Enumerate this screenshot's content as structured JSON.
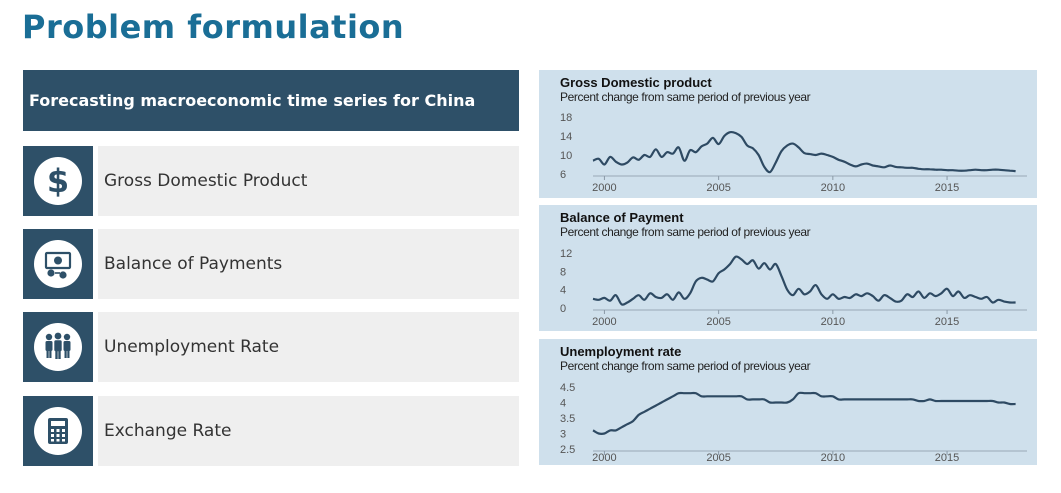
{
  "page_title": "Problem formulation",
  "panel": {
    "header": "Forecasting macroeconomic time series for China",
    "items": [
      {
        "label": "Gross Domestic Product",
        "icon": "dollar-icon"
      },
      {
        "label": "Balance of Payments",
        "icon": "money-exchange-icon"
      },
      {
        "label": "Unemployment Rate",
        "icon": "people-icon"
      },
      {
        "label": "Exchange Rate",
        "icon": "calculator-icon"
      }
    ]
  },
  "colors": {
    "accent": "#1a6e96",
    "panel": "#2e5068",
    "chart_bg": "#cfe0ec",
    "line": "#2e4a63"
  },
  "chart_data": [
    {
      "type": "line",
      "title": "Gross Domestic product",
      "subtitle": "Percent change from same period of previous year",
      "xlim": [
        1999.5,
        2018.5
      ],
      "ylim": [
        6,
        18
      ],
      "yticks": [
        "18",
        "14",
        "10",
        "6"
      ],
      "ytick_values": [
        18,
        14,
        10,
        6
      ],
      "xticks": [
        "2000",
        "2005",
        "2010",
        "2015"
      ],
      "xtick_values": [
        2000,
        2005,
        2010,
        2015
      ],
      "x": [
        1999.5,
        1999.75,
        2000,
        2000.25,
        2000.5,
        2000.75,
        2001,
        2001.25,
        2001.5,
        2001.75,
        2002,
        2002.25,
        2002.5,
        2002.75,
        2003,
        2003.25,
        2003.5,
        2003.75,
        2004,
        2004.25,
        2004.5,
        2004.75,
        2005,
        2005.25,
        2005.5,
        2005.75,
        2006,
        2006.25,
        2006.5,
        2006.75,
        2007,
        2007.25,
        2007.5,
        2007.75,
        2008,
        2008.25,
        2008.5,
        2008.75,
        2009,
        2009.25,
        2009.5,
        2009.75,
        2010,
        2010.25,
        2010.5,
        2010.75,
        2011,
        2011.25,
        2011.5,
        2011.75,
        2012,
        2012.25,
        2012.5,
        2012.75,
        2013,
        2013.25,
        2013.5,
        2013.75,
        2014,
        2014.25,
        2014.5,
        2014.75,
        2015,
        2015.25,
        2015.5,
        2015.75,
        2016,
        2016.25,
        2016.5,
        2016.75,
        2017,
        2017.25,
        2017.5,
        2017.75,
        2018
      ],
      "y": [
        8.8,
        9.2,
        8.0,
        9.6,
        8.6,
        8.0,
        8.4,
        9.5,
        9.0,
        10.0,
        9.6,
        11.2,
        9.6,
        10.6,
        10.3,
        11.6,
        8.8,
        11.0,
        10.6,
        11.8,
        12.4,
        13.6,
        12.3,
        14.0,
        14.8,
        14.6,
        13.8,
        12.0,
        11.4,
        10.0,
        7.5,
        6.4,
        8.4,
        10.8,
        12.0,
        12.4,
        11.6,
        10.4,
        10.2,
        10.0,
        10.3,
        10.0,
        9.6,
        9.0,
        8.6,
        8.0,
        7.6,
        8.0,
        8.2,
        7.8,
        7.6,
        7.4,
        7.8,
        7.5,
        7.4,
        7.3,
        7.3,
        7.1,
        7.0,
        7.0,
        6.9,
        6.9,
        6.8,
        6.8,
        6.7,
        6.7,
        6.8,
        6.9,
        6.8,
        6.8,
        6.9,
        6.9,
        6.8,
        6.7,
        6.6
      ]
    },
    {
      "type": "line",
      "title": "Balance of Payment",
      "subtitle": "Percent change from same period of previous year",
      "xlim": [
        1999.5,
        2018.5
      ],
      "ylim": [
        0,
        12
      ],
      "yticks": [
        "12",
        "8",
        "4",
        "0"
      ],
      "ytick_values": [
        12,
        8,
        4,
        0
      ],
      "xticks": [
        "2000",
        "2005",
        "2010",
        "2015"
      ],
      "xtick_values": [
        2000,
        2005,
        2010,
        2015
      ],
      "x": [
        1999.5,
        1999.75,
        2000,
        2000.25,
        2000.5,
        2000.75,
        2001,
        2001.25,
        2001.5,
        2001.75,
        2002,
        2002.25,
        2002.5,
        2002.75,
        2003,
        2003.25,
        2003.5,
        2003.75,
        2004,
        2004.25,
        2004.5,
        2004.75,
        2005,
        2005.25,
        2005.5,
        2005.75,
        2006,
        2006.25,
        2006.5,
        2006.75,
        2007,
        2007.25,
        2007.5,
        2007.75,
        2008,
        2008.25,
        2008.5,
        2008.75,
        2009,
        2009.25,
        2009.5,
        2009.75,
        2010,
        2010.25,
        2010.5,
        2010.75,
        2011,
        2011.25,
        2011.5,
        2011.75,
        2012,
        2012.25,
        2012.5,
        2012.75,
        2013,
        2013.25,
        2013.5,
        2013.75,
        2014,
        2014.25,
        2014.5,
        2014.75,
        2015,
        2015.25,
        2015.5,
        2015.75,
        2016,
        2016.25,
        2016.5,
        2016.75,
        2017,
        2017.25,
        2017.5,
        2017.75,
        2018
      ],
      "y": [
        2.0,
        1.8,
        2.2,
        1.6,
        2.8,
        0.8,
        1.2,
        2.0,
        2.8,
        1.8,
        3.2,
        2.4,
        2.2,
        3.0,
        1.8,
        3.4,
        2.0,
        3.2,
        5.8,
        6.6,
        6.2,
        5.8,
        7.6,
        8.4,
        9.6,
        11.2,
        10.6,
        9.6,
        10.4,
        8.6,
        9.8,
        8.4,
        9.6,
        7.0,
        4.0,
        2.8,
        4.2,
        3.0,
        3.6,
        5.0,
        3.0,
        2.0,
        3.0,
        2.0,
        2.4,
        2.2,
        3.0,
        2.6,
        3.2,
        2.6,
        1.6,
        2.8,
        2.2,
        1.4,
        1.6,
        3.0,
        2.4,
        3.6,
        2.2,
        3.2,
        2.6,
        3.2,
        4.2,
        2.6,
        3.6,
        2.2,
        2.8,
        2.4,
        2.0,
        2.4,
        1.2,
        1.8,
        1.4,
        1.2,
        1.2
      ]
    },
    {
      "type": "line",
      "title": "Unemployment rate",
      "subtitle": "Percent change from same period of previous year",
      "xlim": [
        1999.5,
        2018.5
      ],
      "ylim": [
        2.5,
        4.5
      ],
      "yticks": [
        "4.5",
        "4",
        "3.5",
        "3",
        "2.5"
      ],
      "ytick_values": [
        4.5,
        4,
        3.5,
        3,
        2.5
      ],
      "xticks": [
        "2000",
        "2005",
        "2010",
        "2015"
      ],
      "xtick_values": [
        2000,
        2005,
        2010,
        2015
      ],
      "x": [
        1999.5,
        1999.75,
        2000,
        2000.25,
        2000.5,
        2000.75,
        2001,
        2001.25,
        2001.5,
        2001.75,
        2002,
        2002.25,
        2002.5,
        2002.75,
        2003,
        2003.25,
        2003.5,
        2003.75,
        2004,
        2004.25,
        2004.5,
        2004.75,
        2005,
        2005.25,
        2005.5,
        2005.75,
        2006,
        2006.25,
        2006.5,
        2006.75,
        2007,
        2007.25,
        2007.5,
        2007.75,
        2008,
        2008.25,
        2008.5,
        2008.75,
        2009,
        2009.25,
        2009.5,
        2009.75,
        2010,
        2010.25,
        2010.5,
        2010.75,
        2011,
        2011.25,
        2011.5,
        2011.75,
        2012,
        2012.25,
        2012.5,
        2012.75,
        2013,
        2013.25,
        2013.5,
        2013.75,
        2014,
        2014.25,
        2014.5,
        2014.75,
        2015,
        2015.25,
        2015.5,
        2015.75,
        2016,
        2016.25,
        2016.5,
        2016.75,
        2017,
        2017.25,
        2017.5,
        2017.75,
        2018
      ],
      "y": [
        3.1,
        3.0,
        3.0,
        3.1,
        3.1,
        3.2,
        3.3,
        3.4,
        3.6,
        3.7,
        3.8,
        3.9,
        4.0,
        4.1,
        4.2,
        4.3,
        4.3,
        4.3,
        4.3,
        4.2,
        4.2,
        4.2,
        4.2,
        4.2,
        4.2,
        4.2,
        4.2,
        4.1,
        4.1,
        4.1,
        4.1,
        4.0,
        4.0,
        4.0,
        4.0,
        4.1,
        4.3,
        4.3,
        4.3,
        4.3,
        4.2,
        4.2,
        4.2,
        4.1,
        4.1,
        4.1,
        4.1,
        4.1,
        4.1,
        4.1,
        4.1,
        4.1,
        4.1,
        4.1,
        4.1,
        4.1,
        4.1,
        4.05,
        4.05,
        4.1,
        4.05,
        4.05,
        4.05,
        4.05,
        4.05,
        4.05,
        4.05,
        4.05,
        4.05,
        4.05,
        4.05,
        4.0,
        4.0,
        3.95,
        3.95
      ]
    }
  ]
}
